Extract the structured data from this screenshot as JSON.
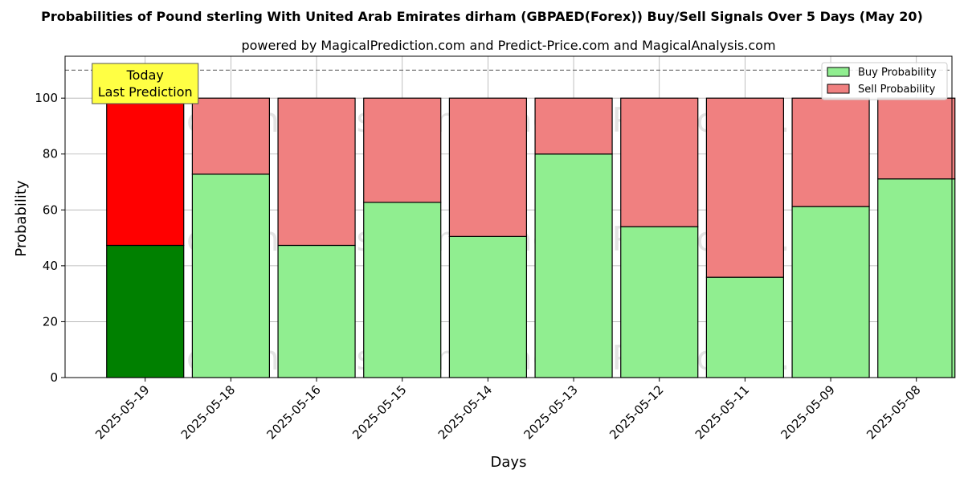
{
  "chart_data": {
    "type": "bar",
    "stacked": true,
    "title": "Probabilities of Pound sterling With United Arab Emirates dirham (GBPAED(Forex)) Buy/Sell Signals Over 5 Days (May 20)",
    "subtitle": "powered by MagicalPrediction.com and Predict-Price.com and MagicalAnalysis.com",
    "xlabel": "Days",
    "ylabel": "Probability",
    "ylim": [
      0,
      115
    ],
    "yticks": [
      0,
      20,
      40,
      60,
      80,
      100
    ],
    "reference_line": 110,
    "grid": true,
    "legend_position": "top-right",
    "categories": [
      "2025-05-19",
      "2025-05-18",
      "2025-05-16",
      "2025-05-15",
      "2025-05-14",
      "2025-05-13",
      "2025-05-12",
      "2025-05-11",
      "2025-05-09",
      "2025-05-08"
    ],
    "series": [
      {
        "name": "Buy Probability",
        "values": [
          47.3,
          72.8,
          47.3,
          62.7,
          50.5,
          80.0,
          54.0,
          35.9,
          61.2,
          71.1
        ]
      },
      {
        "name": "Sell Probability",
        "values": [
          52.7,
          27.2,
          52.7,
          37.3,
          49.5,
          20.0,
          46.0,
          64.1,
          38.8,
          28.9
        ]
      }
    ],
    "colors": {
      "buy": "#90ee90",
      "sell": "#f08080",
      "buy_highlight": "#008000",
      "sell_highlight": "#ff0000",
      "annotation_bg": "#ffff44"
    },
    "annotation": {
      "category": "2025-05-19",
      "lines": [
        "Today",
        "Last Prediction"
      ]
    },
    "watermarks": [
      "MagicalAnalysis.com",
      "MagicalPrediction.com"
    ]
  }
}
